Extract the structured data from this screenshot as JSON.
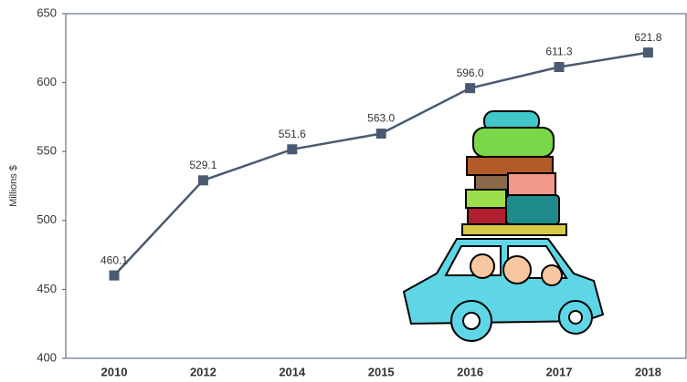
{
  "chart_data": {
    "type": "line",
    "y_label": "Millions $",
    "categories": [
      "2010",
      "2012",
      "2014",
      "2015",
      "2016",
      "2017",
      "2018"
    ],
    "values": [
      460.1,
      529.1,
      551.6,
      563.0,
      596.0,
      611.3,
      621.8
    ],
    "value_labels": [
      "460.1",
      "529.1",
      "551.6",
      "563.0",
      "596.0",
      "611.3",
      "621.8"
    ],
    "color": "#4a5a70",
    "ylim": [
      400,
      650
    ],
    "yticks": [
      400,
      450,
      500,
      550,
      600,
      650
    ]
  }
}
